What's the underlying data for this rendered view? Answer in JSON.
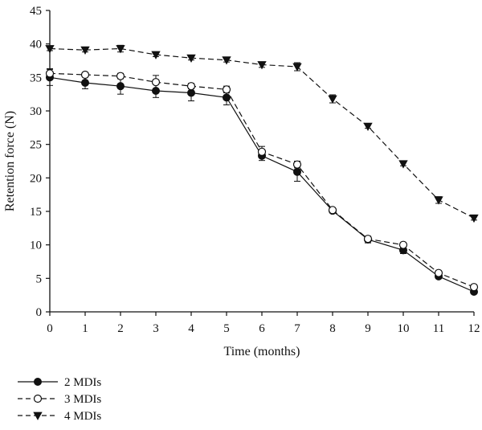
{
  "chart_data": {
    "type": "line",
    "title": "",
    "xlabel": "Time (months)",
    "ylabel": "Retention force (N)",
    "xlim": [
      0,
      12
    ],
    "ylim": [
      0,
      45
    ],
    "x_ticks": [
      0,
      1,
      2,
      3,
      4,
      5,
      6,
      7,
      8,
      9,
      10,
      11,
      12
    ],
    "y_ticks": [
      0,
      5,
      10,
      15,
      20,
      25,
      30,
      35,
      40,
      45
    ],
    "grid": false,
    "legend_position": "bottom-left",
    "x": [
      0,
      1,
      2,
      3,
      4,
      5,
      6,
      7,
      8,
      9,
      10,
      11,
      12
    ],
    "series": [
      {
        "name": "2 MDIs",
        "line": "solid",
        "marker": "filled-circle",
        "values": [
          35.0,
          34.2,
          33.7,
          33.0,
          32.7,
          32.0,
          23.3,
          20.9,
          15.1,
          10.8,
          9.2,
          5.3,
          3.0
        ],
        "errors": [
          1.2,
          0.9,
          1.2,
          1.0,
          1.2,
          1.1,
          0.7,
          1.4,
          0.3,
          0.5,
          0.5,
          0.3,
          0.3
        ]
      },
      {
        "name": "3 MDIs",
        "line": "dashed",
        "marker": "open-circle",
        "values": [
          35.6,
          35.4,
          35.2,
          34.3,
          33.7,
          33.2,
          23.9,
          22.0,
          15.2,
          10.9,
          10.0,
          5.8,
          3.7
        ],
        "errors": [
          0.7,
          0.3,
          0.4,
          1.0,
          0.4,
          0.5,
          0.8,
          0.5,
          0.3,
          0.3,
          0.3,
          0.3,
          0.3
        ]
      },
      {
        "name": "4 MDIs",
        "line": "dashed",
        "marker": "filled-triangle-down",
        "values": [
          39.3,
          39.1,
          39.3,
          38.4,
          37.9,
          37.6,
          36.9,
          36.6,
          31.8,
          27.7,
          22.1,
          16.7,
          14.0
        ],
        "errors": [
          0.3,
          0.3,
          0.5,
          0.3,
          0.3,
          0.3,
          0.4,
          0.6,
          0.6,
          0.3,
          0.3,
          0.5,
          0.3
        ]
      }
    ]
  }
}
